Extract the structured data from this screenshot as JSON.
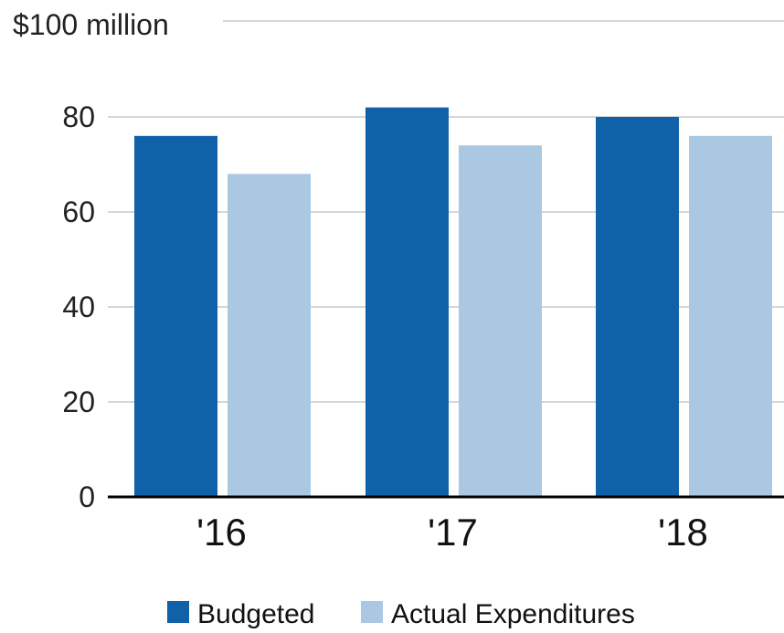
{
  "chart_data": {
    "type": "bar",
    "title": "",
    "xlabel": "",
    "ylabel": "",
    "unit_label": "$100 million",
    "categories": [
      "'16",
      "'17",
      "'18"
    ],
    "series": [
      {
        "name": "Budgeted",
        "color": "#1062a8",
        "values": [
          76,
          82,
          80
        ]
      },
      {
        "name": "Actual Expenditures",
        "color": "#aac8e1",
        "values": [
          68,
          74,
          76
        ]
      }
    ],
    "yticks": [
      0,
      20,
      40,
      60,
      80
    ],
    "ylim": [
      0,
      100
    ],
    "grid": true,
    "legend": "bottom-center"
  }
}
